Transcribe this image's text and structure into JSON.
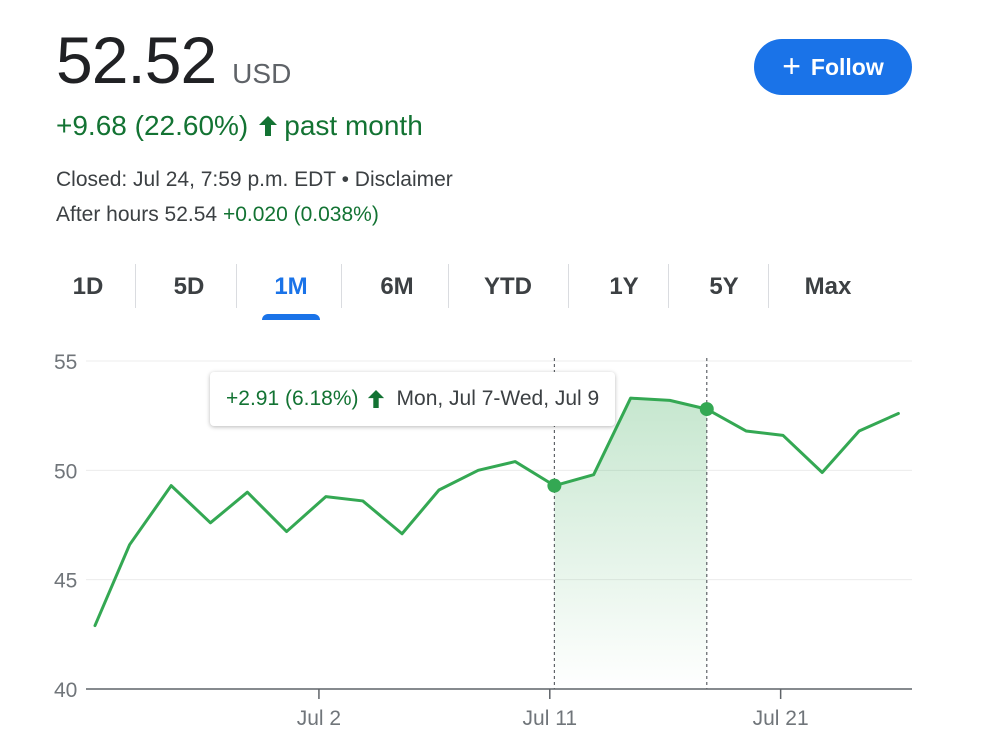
{
  "quote": {
    "price": "52.52",
    "currency": "USD",
    "change": "+9.68 (22.60%)",
    "period": "past month",
    "closed_text": "Closed: Jul 24, 7:59 p.m. EDT",
    "separator": "•",
    "disclaimer": "Disclaimer",
    "after_hours_label": "After hours 52.54",
    "after_hours_change": "+0.020 (0.038%)"
  },
  "follow": {
    "label": "Follow"
  },
  "tabs": [
    {
      "label": "1D"
    },
    {
      "label": "5D"
    },
    {
      "label": "1M"
    },
    {
      "label": "6M"
    },
    {
      "label": "YTD"
    },
    {
      "label": "1Y"
    },
    {
      "label": "5Y"
    },
    {
      "label": "Max"
    }
  ],
  "active_tab": "1M",
  "tooltip": {
    "change": "+2.91 (6.18%)",
    "range": "Mon, Jul 7-Wed, Jul 9"
  },
  "colors": {
    "accent": "#1a73e8",
    "positive": "#137333",
    "line": "#34a853"
  },
  "chart_data": {
    "type": "line",
    "x_tick_labels": [
      "Jul 2",
      "Jul 11",
      "Jul 21"
    ],
    "y_tick_labels": [
      "40",
      "45",
      "50",
      "55"
    ],
    "ylim": [
      40,
      55
    ],
    "x_domain": [
      0,
      35
    ],
    "x_ticks": [
      9.7,
      19.7,
      29.7
    ],
    "grid": true,
    "series": [
      {
        "values": [
          [
            0,
            42.9
          ],
          [
            1.5,
            46.6
          ],
          [
            3.3,
            49.3
          ],
          [
            5,
            47.6
          ],
          [
            6.6,
            49.0
          ],
          [
            8.3,
            47.2
          ],
          [
            10,
            48.8
          ],
          [
            11.6,
            48.6
          ],
          [
            13.3,
            47.1
          ],
          [
            14.9,
            49.1
          ],
          [
            16.6,
            50.0
          ],
          [
            18.2,
            50.4
          ],
          [
            19.9,
            49.3
          ],
          [
            21.6,
            49.8
          ],
          [
            23.2,
            53.3
          ],
          [
            24.9,
            53.2
          ],
          [
            26.5,
            52.8
          ],
          [
            28.2,
            51.8
          ],
          [
            29.8,
            51.6
          ],
          [
            31.5,
            49.9
          ],
          [
            33.1,
            51.8
          ],
          [
            34.8,
            52.6
          ]
        ]
      }
    ],
    "selection": {
      "start_index": 12,
      "end_index": 16
    }
  }
}
